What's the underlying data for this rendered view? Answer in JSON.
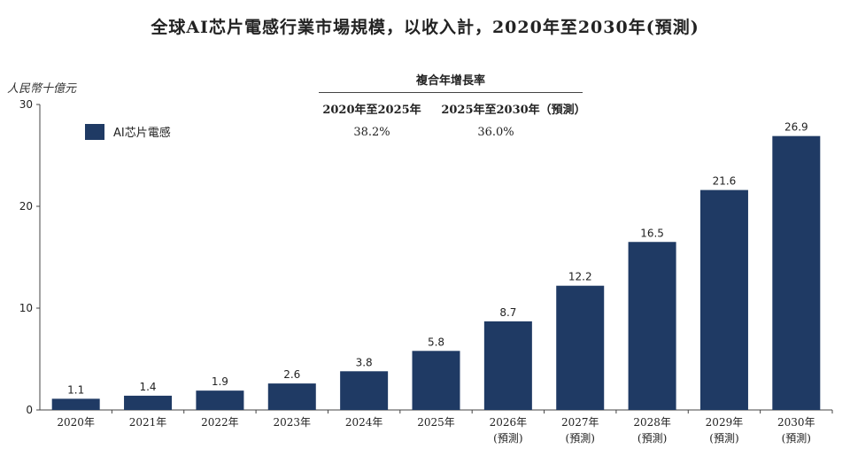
{
  "title": "全球AI芯片電感行業市場規模，以收入計，2020年至2030年(預測)",
  "unit_label": "人民幣十億元",
  "cagr": {
    "heading": "複合年增長率",
    "periods": [
      {
        "label": "2020年至2025年",
        "value": "38.2%"
      },
      {
        "label": "2025年至2030年（預測）",
        "value": "36.0%"
      }
    ]
  },
  "chart_data": {
    "type": "bar",
    "title": "全球AI芯片電感行業市場規模，以收入計，2020年至2030年(預測)",
    "ylabel": "人民幣十億元",
    "xlabel": "",
    "ylim": [
      0,
      30
    ],
    "yticks": [
      0,
      10,
      20,
      30
    ],
    "grid": false,
    "legend_position": "top-left",
    "bar_color": "#1f3a64",
    "categories": [
      "2020年",
      "2021年",
      "2022年",
      "2023年",
      "2024年",
      "2025年",
      "2026年",
      "2027年",
      "2028年",
      "2029年",
      "2030年"
    ],
    "category_sublabels": [
      "",
      "",
      "",
      "",
      "",
      "",
      "(預測)",
      "(預測)",
      "(預測)",
      "(預測)",
      "(預測)"
    ],
    "series": [
      {
        "name": "AI芯片電感",
        "values": [
          1.1,
          1.4,
          1.9,
          2.6,
          3.8,
          5.8,
          8.7,
          12.2,
          16.5,
          21.6,
          26.9
        ]
      }
    ]
  }
}
